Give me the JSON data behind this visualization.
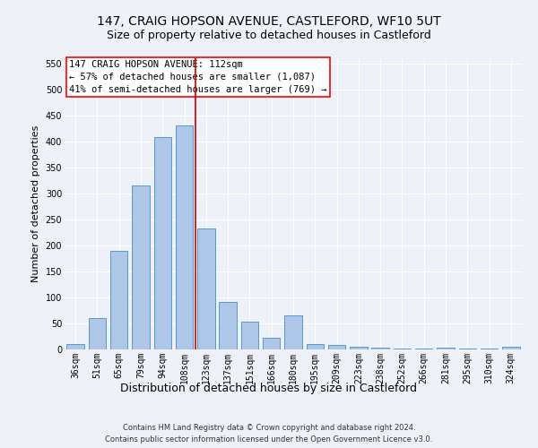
{
  "title": "147, CRAIG HOPSON AVENUE, CASTLEFORD, WF10 5UT",
  "subtitle": "Size of property relative to detached houses in Castleford",
  "xlabel": "Distribution of detached houses by size in Castleford",
  "ylabel": "Number of detached properties",
  "categories": [
    "36sqm",
    "51sqm",
    "65sqm",
    "79sqm",
    "94sqm",
    "108sqm",
    "123sqm",
    "137sqm",
    "151sqm",
    "166sqm",
    "180sqm",
    "195sqm",
    "209sqm",
    "223sqm",
    "238sqm",
    "252sqm",
    "266sqm",
    "281sqm",
    "295sqm",
    "310sqm",
    "324sqm"
  ],
  "values": [
    11,
    60,
    189,
    315,
    408,
    430,
    232,
    92,
    53,
    22,
    65,
    10,
    9,
    5,
    3,
    2,
    1,
    4,
    1,
    1,
    5
  ],
  "bar_color": "#aec6e8",
  "bar_edge_color": "#5599cc",
  "property_label": "147 CRAIG HOPSON AVENUE: 112sqm",
  "annotation_line1": "← 57% of detached houses are smaller (1,087)",
  "annotation_line2": "41% of semi-detached houses are larger (769) →",
  "vline_color": "#cc0000",
  "vline_position": 5.5,
  "ylim": [
    0,
    560
  ],
  "yticks": [
    0,
    50,
    100,
    150,
    200,
    250,
    300,
    350,
    400,
    450,
    500,
    550
  ],
  "footer_line1": "Contains HM Land Registry data © Crown copyright and database right 2024.",
  "footer_line2": "Contains public sector information licensed under the Open Government Licence v3.0.",
  "bg_color": "#eef2f8",
  "grid_color": "#ffffff",
  "title_fontsize": 10,
  "subtitle_fontsize": 9,
  "ylabel_fontsize": 8,
  "xlabel_fontsize": 9,
  "tick_fontsize": 7,
  "annotation_fontsize": 7.5,
  "footer_fontsize": 6
}
